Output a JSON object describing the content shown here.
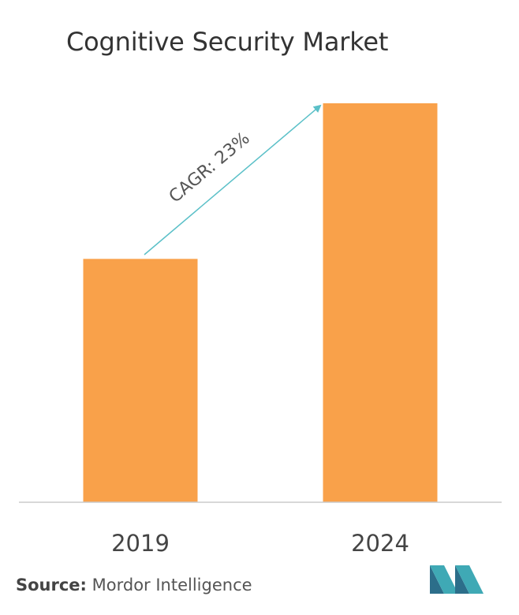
{
  "chart_data": {
    "type": "bar",
    "title": "Cognitive Security Market",
    "categories": [
      "2019",
      "2024"
    ],
    "values": [
      0.61,
      1.0
    ],
    "xlabel": "",
    "ylabel": "",
    "ylim": [
      0,
      1.0
    ],
    "grid": false,
    "legend": "none",
    "bar_color": "#F9A14A",
    "annotation": {
      "text": "CAGR: 23%",
      "color": "#5BC0C8"
    }
  },
  "footer": {
    "source_label": "Source:",
    "source_text": "Mordor Intelligence"
  },
  "colors": {
    "axis": "#CCCCCC",
    "logo_teal": "#3FA9B5",
    "logo_dark": "#2C6E8A"
  }
}
